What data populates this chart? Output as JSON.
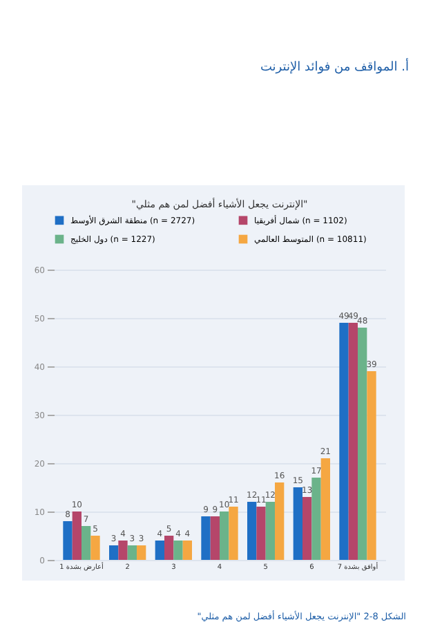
{
  "chart_data": {
    "type": "bar",
    "title": "أ. المواقف من فوائد الإنترنت",
    "subtitle": "\"الإنترنت يجعل الأشياء أفضل لمن هم مثلي\"",
    "categories": [
      "أعارض بشدة 1",
      "2",
      "3",
      "4",
      "5",
      "6",
      "أوافق بشدة 7"
    ],
    "series": [
      {
        "name": "منطقة الشرق الأوسط (n = 2727)",
        "color": "#1f6fc5",
        "values": [
          8,
          3,
          4,
          9,
          12,
          15,
          49
        ]
      },
      {
        "name": "شمال أفريقيا (n = 1102)",
        "color": "#b5466a",
        "values": [
          10,
          4,
          5,
          9,
          11,
          13,
          49
        ]
      },
      {
        "name": "دول الخليج (n = 1227)",
        "color": "#6bb38a",
        "values": [
          7,
          3,
          4,
          10,
          12,
          17,
          48
        ]
      },
      {
        "name": "المتوسط العالمي (n = 10811)",
        "color": "#f5a742",
        "values": [
          5,
          3,
          4,
          11,
          16,
          21,
          39
        ]
      }
    ],
    "ylim": [
      0,
      60
    ],
    "yticks": [
      0,
      10,
      20,
      30,
      40,
      50,
      60
    ],
    "grid": "y",
    "legend": "top",
    "data_labels": true,
    "annotations": [
      "الشكل 8-2 \"الإنترنت يجعل الأشياء أفضل لمن هم مثلي\""
    ]
  }
}
